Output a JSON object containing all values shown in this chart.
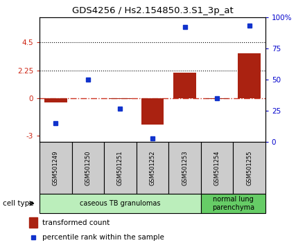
{
  "title": "GDS4256 / Hs2.154850.3.S1_3p_at",
  "samples": [
    "GSM501249",
    "GSM501250",
    "GSM501251",
    "GSM501252",
    "GSM501253",
    "GSM501254",
    "GSM501255"
  ],
  "transformed_count": [
    -0.35,
    0.02,
    -0.05,
    -2.1,
    2.05,
    -0.05,
    3.6
  ],
  "percentile_rank": [
    15,
    50,
    27,
    3,
    92,
    35,
    93
  ],
  "ylim_left": [
    -3.5,
    6.5
  ],
  "ylim_right": [
    0,
    100
  ],
  "yticks_left": [
    -3,
    0,
    2.25,
    4.5
  ],
  "yticks_right": [
    0,
    25,
    50,
    75,
    100
  ],
  "bar_color": "#aa2211",
  "dot_color": "#1133cc",
  "cell_type_groups": [
    {
      "label": "caseous TB granulomas",
      "start": 0,
      "end": 5,
      "color": "#bbeebb"
    },
    {
      "label": "normal lung\nparenchyma",
      "start": 5,
      "end": 7,
      "color": "#66cc66"
    }
  ],
  "cell_type_label": "cell type",
  "legend_bar_label": "transformed count",
  "legend_dot_label": "percentile rank within the sample",
  "dotted_hlines": [
    2.25,
    4.5
  ],
  "zero_hline_color": "#cc3322",
  "bar_width": 0.7,
  "sample_box_color": "#cccccc",
  "left_tick_color": "#cc2211",
  "right_tick_color": "#0000cc"
}
